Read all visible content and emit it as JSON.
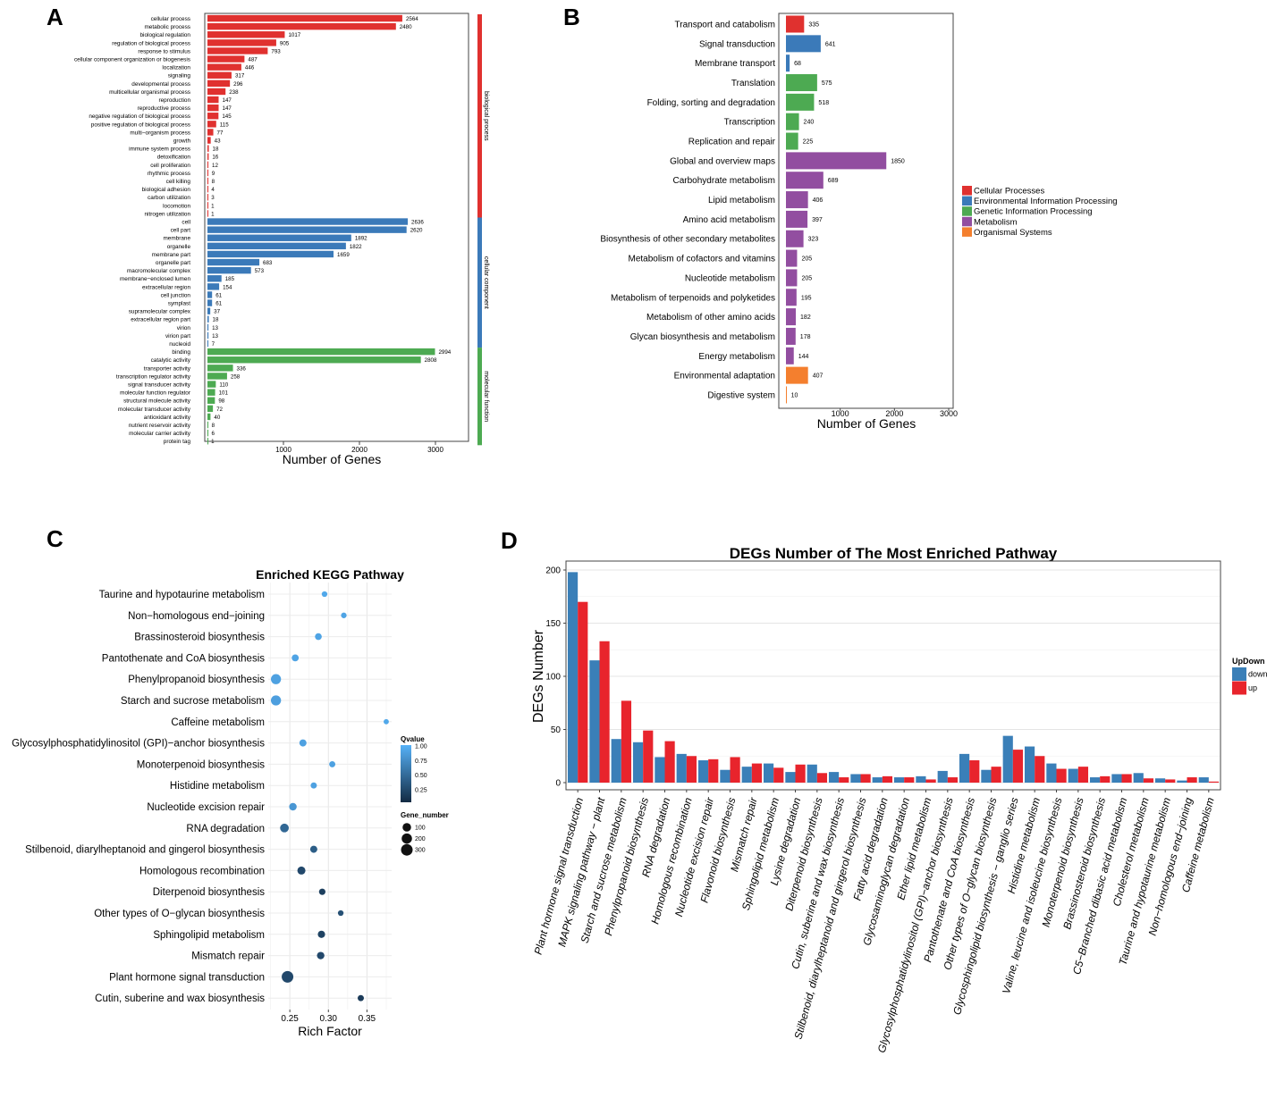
{
  "chart_data": [
    {
      "id": "A",
      "type": "bar",
      "orientation": "horizontal",
      "panel_label": "A",
      "xlabel": "Number of Genes",
      "x_ticks": [
        1000,
        2000,
        3000
      ],
      "colors": {
        "biological process": "#e0312f",
        "cellular component": "#3b7ab9",
        "molecular function": "#4daa52"
      },
      "groups": [
        {
          "name": "biological process",
          "label": "biological process",
          "color": "#e0312f",
          "categories": [
            "cellular process",
            "metabolic process",
            "biological regulation",
            "regulation of biological process",
            "response to stimulus",
            "cellular component organization or biogenesis",
            "localization",
            "signaling",
            "developmental process",
            "multicellular organismal process",
            "reproduction",
            "reproductive process",
            "negative regulation of biological process",
            "positive regulation of biological process",
            "multi−organism process",
            "growth",
            "immune system process",
            "detoxification",
            "cell proliferation",
            "rhythmic process",
            "cell killing",
            "biological adhesion",
            "carbon utilization",
            "locomotion",
            "nitrogen utilization"
          ],
          "values": [
            2564,
            2480,
            1017,
            905,
            793,
            487,
            446,
            317,
            296,
            238,
            147,
            147,
            145,
            115,
            77,
            43,
            18,
            16,
            12,
            9,
            8,
            4,
            3,
            1,
            1
          ]
        },
        {
          "name": "cellular component",
          "label": "cellular component",
          "color": "#3b7ab9",
          "categories": [
            "cell",
            "cell part",
            "membrane",
            "organelle",
            "membrane part",
            "organelle part",
            "macromolecular complex",
            "membrane−enclosed lumen",
            "extracellular region",
            "cell junction",
            "symplast",
            "supramolecular complex",
            "extracellular region part",
            "virion",
            "virion part",
            "nucleoid"
          ],
          "values": [
            2636,
            2620,
            1892,
            1822,
            1659,
            683,
            573,
            185,
            154,
            61,
            61,
            37,
            18,
            13,
            13,
            7
          ]
        },
        {
          "name": "molecular function",
          "label": "molecular function",
          "color": "#4daa52",
          "categories": [
            "binding",
            "catalytic activity",
            "transporter activity",
            "transcription regulator activity",
            "signal transducer activity",
            "molecular function regulator",
            "structural molecule activity",
            "molecular transducer activity",
            "antioxidant activity",
            "nutrient reservoir activity",
            "molecular carrier activity",
            "protein tag"
          ],
          "values": [
            2994,
            2808,
            336,
            258,
            110,
            101,
            98,
            72,
            40,
            8,
            6,
            1
          ]
        }
      ]
    },
    {
      "id": "B",
      "type": "bar",
      "orientation": "horizontal",
      "panel_label": "B",
      "xlabel": "Number of Genes",
      "x_ticks": [
        1000,
        2000,
        3000
      ],
      "categories": [
        "Transport and catabolism",
        "Signal transduction",
        "Membrane transport",
        "Translation",
        "Folding, sorting and degradation",
        "Transcription",
        "Replication and repair",
        "Global and overview maps",
        "Carbohydrate metabolism",
        "Lipid metabolism",
        "Amino acid metabolism",
        "Biosynthesis of other secondary metabolites",
        "Metabolism of cofactors and vitamins",
        "Nucleotide metabolism",
        "Metabolism of terpenoids and polyketides",
        "Metabolism of other amino acids",
        "Glycan biosynthesis and metabolism",
        "Energy metabolism",
        "Environmental adaptation",
        "Digestive system"
      ],
      "values": [
        335,
        641,
        68,
        575,
        518,
        240,
        225,
        1850,
        689,
        406,
        397,
        323,
        205,
        205,
        195,
        182,
        178,
        144,
        407,
        10
      ],
      "class_index": [
        0,
        1,
        1,
        2,
        2,
        2,
        2,
        3,
        3,
        3,
        3,
        3,
        3,
        3,
        3,
        3,
        3,
        3,
        4,
        4
      ],
      "legend": [
        {
          "label": "Cellular Processes",
          "color": "#e0312f"
        },
        {
          "label": "Environmental Information Processing",
          "color": "#3b7ab9"
        },
        {
          "label": "Genetic Information Processing",
          "color": "#4daa52"
        },
        {
          "label": "Metabolism",
          "color": "#924ea0"
        },
        {
          "label": "Organismal Systems",
          "color": "#f47f2e"
        }
      ]
    },
    {
      "id": "C",
      "type": "scatter",
      "panel_label": "C",
      "title": "Enriched KEGG Pathway",
      "xlabel": "Rich Factor",
      "x_ticks": [
        0.25,
        0.3,
        0.35
      ],
      "xlim": [
        0.222,
        0.382
      ],
      "categories": [
        "Taurine and hypotaurine metabolism",
        "Non−homologous end−joining",
        "Brassinosteroid biosynthesis",
        "Pantothenate and CoA biosynthesis",
        "Phenylpropanoid biosynthesis",
        "Starch and sucrose metabolism",
        "Caffeine metabolism",
        "Glycosylphosphatidylinositol (GPI)−anchor biosynthesis",
        "Monoterpenoid biosynthesis",
        "Histidine metabolism",
        "Nucleotide excision repair",
        "RNA degradation",
        "Stilbenoid, diarylheptanoid and gingerol biosynthesis",
        "Homologous recombination",
        "Diterpenoid biosynthesis",
        "Other types of O−glycan biosynthesis",
        "Sphingolipid metabolism",
        "Mismatch repair",
        "Plant hormone signal transduction",
        "Cutin, suberine and wax biosynthesis"
      ],
      "rich_factor": [
        0.295,
        0.32,
        0.287,
        0.257,
        0.232,
        0.232,
        0.375,
        0.267,
        0.305,
        0.281,
        0.254,
        0.243,
        0.281,
        0.265,
        0.292,
        0.316,
        0.291,
        0.29,
        0.247,
        0.342
      ],
      "qvalue": [
        0.93,
        0.9,
        0.9,
        0.9,
        0.88,
        0.86,
        0.93,
        0.88,
        0.88,
        0.88,
        0.8,
        0.45,
        0.38,
        0.22,
        0.15,
        0.28,
        0.18,
        0.22,
        0.22,
        0.12
      ],
      "gene_number": [
        10,
        10,
        35,
        40,
        190,
        190,
        5,
        45,
        20,
        20,
        60,
        110,
        45,
        80,
        25,
        10,
        50,
        55,
        300,
        20
      ],
      "legend": {
        "qvalue_title": "Qvalue",
        "qvalue_ticks": [
          "1.00",
          "0.75",
          "0.50",
          "0.25"
        ],
        "qvalue_colors": {
          "low": "#132b43",
          "high": "#56b1f7"
        },
        "size_title": "Gene_number",
        "size_ticks": [
          {
            "label": "100",
            "value": 100
          },
          {
            "label": "200",
            "value": 200
          },
          {
            "label": "300",
            "value": 300
          }
        ]
      }
    },
    {
      "id": "D",
      "type": "bar",
      "orientation": "vertical",
      "panel_label": "D",
      "title": "DEGs Number of The Most Enriched Pathway",
      "ylabel": "DEGs Number",
      "ylim": [
        0,
        210
      ],
      "y_ticks": [
        0,
        50,
        100,
        150,
        200
      ],
      "categories": [
        "Plant hormone signal transduction",
        "MAPK signaling pathway − plant",
        "Starch and sucrose metabolism",
        "Phenylpropanoid biosynthesis",
        "RNA degradation",
        "Homologous recombination",
        "Nucleotide excision repair",
        "Flavonoid biosynthesis",
        "Mismatch repair",
        "Sphingolipid metabolism",
        "Lysine degradation",
        "Diterpenoid biosynthesis",
        "Cutin, suberine and wax biosynthesis",
        "Stilbenoid, diarylheptanoid and gingerol biosynthesis",
        "Fatty acid degradation",
        "Glycosaminoglycan degradation",
        "Ether lipid metabolism",
        "Glycosylphosphatidylinositol (GPI)−anchor biosynthesis",
        "Pantothenate and CoA biosynthesis",
        "Other types of O−glycan biosynthesis",
        "Glycosphingolipid biosynthesis − ganglio series",
        "Histidine metabolism",
        "Valine, leucine and isoleucine biosynthesis",
        "Monoterpenoid biosynthesis",
        "Brassinosteroid biosynthesis",
        "C5−Branched dibasic acid metabolism",
        "Cholesterol metabolism",
        "Taurine and hypotaurine metabolism",
        "Non−homologous end−joining",
        "Caffeine metabolism"
      ],
      "series": [
        {
          "name": "down",
          "color": "#3a7fb8",
          "values": [
            198,
            115,
            41,
            38,
            24,
            27,
            21,
            12,
            15,
            18,
            10,
            17,
            10,
            8,
            5,
            5,
            6,
            11,
            27,
            12,
            44,
            34,
            18,
            13,
            5,
            8,
            9,
            4,
            2,
            5
          ]
        },
        {
          "name": "up",
          "color": "#e8242c",
          "values": [
            170,
            133,
            77,
            49,
            39,
            25,
            22,
            24,
            18,
            14,
            17,
            9,
            5,
            8,
            6,
            5,
            3,
            5,
            21,
            15,
            31,
            25,
            13,
            15,
            6,
            8,
            4,
            3,
            5,
            1
          ]
        }
      ],
      "legend_title": "UpDown"
    }
  ]
}
